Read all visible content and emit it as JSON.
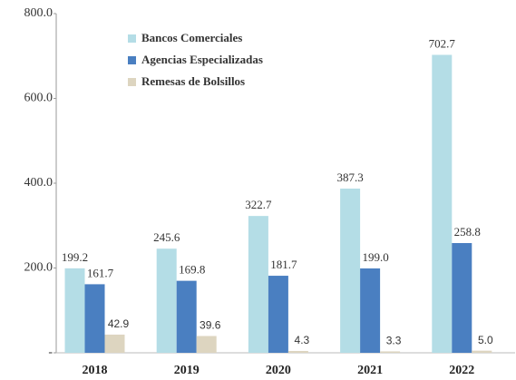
{
  "chart_data": {
    "type": "bar",
    "categories": [
      "2018",
      "2019",
      "2020",
      "2021",
      "2022"
    ],
    "series": [
      {
        "name": "Bancos Comerciales",
        "color": "#b4dde6",
        "values": [
          199.2,
          245.6,
          322.7,
          387.3,
          702.7
        ],
        "value_labels": [
          "199.2",
          "245.6",
          "322.7",
          "387.3",
          "702.7"
        ]
      },
      {
        "name": "Agencias Especializadas",
        "color": "#4a7fc1",
        "values": [
          161.7,
          169.8,
          181.7,
          199.0,
          258.8
        ],
        "value_labels": [
          "161.7",
          "169.8",
          "181.7",
          "199.0",
          "258.8"
        ]
      },
      {
        "name": "Remesas de Bolsillos",
        "color": "#ddd5c0",
        "values": [
          42.9,
          39.6,
          4.3,
          3.3,
          5.0
        ],
        "value_labels": [
          "42.9",
          "39.6",
          "4.3",
          "3.3",
          "5.0"
        ]
      }
    ],
    "ylim": [
      0,
      800
    ],
    "yticks": [
      {
        "value": 0,
        "label": "-"
      },
      {
        "value": 200,
        "label": "200.0"
      },
      {
        "value": 400,
        "label": "400.0"
      },
      {
        "value": 600,
        "label": "600.0"
      },
      {
        "value": 800,
        "label": "800.0"
      }
    ],
    "legend": "top-left",
    "grid": false
  }
}
